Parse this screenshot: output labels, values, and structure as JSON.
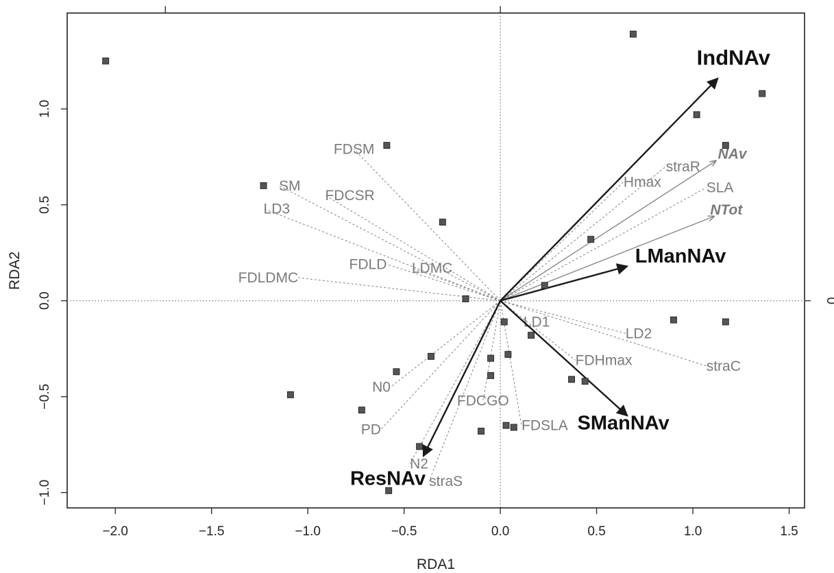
{
  "chart_data": {
    "type": "scatter",
    "xlabel": "RDA1",
    "ylabel": "RDA2",
    "xlim": [
      -2.25,
      1.58
    ],
    "ylim": [
      -1.08,
      1.5
    ],
    "x_ticks": [
      -2.0,
      -1.5,
      -1.0,
      -0.5,
      0.0,
      0.5,
      1.0,
      1.5
    ],
    "x_tick_labels": [
      "−2.0",
      "−1.5",
      "−1.0",
      "−0.5",
      "0.0",
      "0.5",
      "1.0",
      "1.5"
    ],
    "y_ticks": [
      -1.0,
      -0.5,
      0.0,
      0.5,
      1.0
    ],
    "y_tick_labels": [
      "−1.0",
      "−0.5",
      "0.0",
      "0.5",
      "1.0"
    ],
    "right_axis_ticks": [
      0.0
    ],
    "right_axis_tick_labels": [
      "0"
    ],
    "reference_lines": {
      "x": 0,
      "y": 0,
      "style": "dotted"
    },
    "grid": false,
    "colors": {
      "site": "#555555",
      "response": "#1a1a1a",
      "passive": "#888888",
      "dashed": "#8c8c8c"
    },
    "sites": [
      {
        "x": -2.05,
        "y": 1.25
      },
      {
        "x": 0.69,
        "y": 1.39
      },
      {
        "x": 1.36,
        "y": 1.08
      },
      {
        "x": 1.02,
        "y": 0.97
      },
      {
        "x": 1.17,
        "y": 0.81
      },
      {
        "x": -0.59,
        "y": 0.81
      },
      {
        "x": -1.23,
        "y": 0.6
      },
      {
        "x": -0.3,
        "y": 0.41
      },
      {
        "x": 0.47,
        "y": 0.32
      },
      {
        "x": 0.23,
        "y": 0.08
      },
      {
        "x": -0.18,
        "y": 0.01
      },
      {
        "x": 0.02,
        "y": -0.11
      },
      {
        "x": 0.9,
        "y": -0.1
      },
      {
        "x": 1.17,
        "y": -0.11
      },
      {
        "x": 0.16,
        "y": -0.18
      },
      {
        "x": -0.36,
        "y": -0.29
      },
      {
        "x": 0.04,
        "y": -0.28
      },
      {
        "x": -0.05,
        "y": -0.3
      },
      {
        "x": -0.05,
        "y": -0.39
      },
      {
        "x": -0.54,
        "y": -0.37
      },
      {
        "x": 0.37,
        "y": -0.41
      },
      {
        "x": 0.44,
        "y": -0.42
      },
      {
        "x": -1.09,
        "y": -0.49
      },
      {
        "x": -0.72,
        "y": -0.57
      },
      {
        "x": 0.03,
        "y": -0.65
      },
      {
        "x": 0.07,
        "y": -0.66
      },
      {
        "x": -0.1,
        "y": -0.68
      },
      {
        "x": -0.42,
        "y": -0.76
      },
      {
        "x": -0.58,
        "y": -0.99
      }
    ],
    "response_arrows": [
      {
        "name": "IndNAv",
        "x": 1.13,
        "y": 1.16,
        "lx": 1.02,
        "ly": 1.23,
        "size": 31
      },
      {
        "name": "LManNAv",
        "x": 0.66,
        "y": 0.18,
        "lx": 0.7,
        "ly": 0.2,
        "size": 29
      },
      {
        "name": "SManNAv",
        "x": 0.66,
        "y": -0.6,
        "lx": 0.4,
        "ly": -0.67,
        "size": 29
      },
      {
        "name": "ResNAv",
        "x": -0.4,
        "y": -0.81,
        "lx": -0.78,
        "ly": -0.96,
        "size": 29
      }
    ],
    "passive_arrows": [
      {
        "name": "NAv",
        "x": 1.12,
        "y": 0.73,
        "lx": 1.13,
        "ly": 0.74
      },
      {
        "name": "NTot",
        "x": 1.11,
        "y": 0.44,
        "lx": 1.09,
        "ly": 0.45
      }
    ],
    "supplementary_vectors": [
      {
        "name": "FDSM",
        "x": -0.76,
        "y": 0.79,
        "anchor": "middle"
      },
      {
        "name": "SM",
        "x": -1.15,
        "y": 0.6,
        "anchor": "start"
      },
      {
        "name": "FDCSR",
        "x": -0.91,
        "y": 0.55,
        "anchor": "start"
      },
      {
        "name": "LD3",
        "x": -1.23,
        "y": 0.48,
        "anchor": "start"
      },
      {
        "name": "FDLD",
        "x": -0.59,
        "y": 0.19,
        "anchor": "end"
      },
      {
        "name": "LDMC",
        "x": -0.46,
        "y": 0.17,
        "anchor": "start"
      },
      {
        "name": "FDLDMC",
        "x": -1.05,
        "y": 0.12,
        "anchor": "end"
      },
      {
        "name": "straR",
        "x": 0.86,
        "y": 0.7,
        "anchor": "start"
      },
      {
        "name": "Hmax",
        "x": 0.64,
        "y": 0.62,
        "anchor": "start"
      },
      {
        "name": "SLA",
        "x": 1.07,
        "y": 0.59,
        "anchor": "start"
      },
      {
        "name": "LD1",
        "x": 0.12,
        "y": -0.11,
        "anchor": "start"
      },
      {
        "name": "LD2",
        "x": 0.65,
        "y": -0.17,
        "anchor": "start"
      },
      {
        "name": "straC",
        "x": 1.07,
        "y": -0.34,
        "anchor": "start"
      },
      {
        "name": "FDHmax",
        "x": 0.39,
        "y": -0.31,
        "anchor": "start"
      },
      {
        "name": "FDCGO",
        "x": -0.09,
        "y": -0.52,
        "anchor": "middle"
      },
      {
        "name": "FDSLA",
        "x": 0.11,
        "y": -0.65,
        "anchor": "start"
      },
      {
        "name": "N0",
        "x": -0.57,
        "y": -0.45,
        "anchor": "end"
      },
      {
        "name": "PD",
        "x": -0.62,
        "y": -0.67,
        "anchor": "end"
      },
      {
        "name": "N2",
        "x": -0.47,
        "y": -0.85,
        "anchor": "start"
      },
      {
        "name": "straS",
        "x": -0.37,
        "y": -0.94,
        "anchor": "start"
      }
    ]
  }
}
